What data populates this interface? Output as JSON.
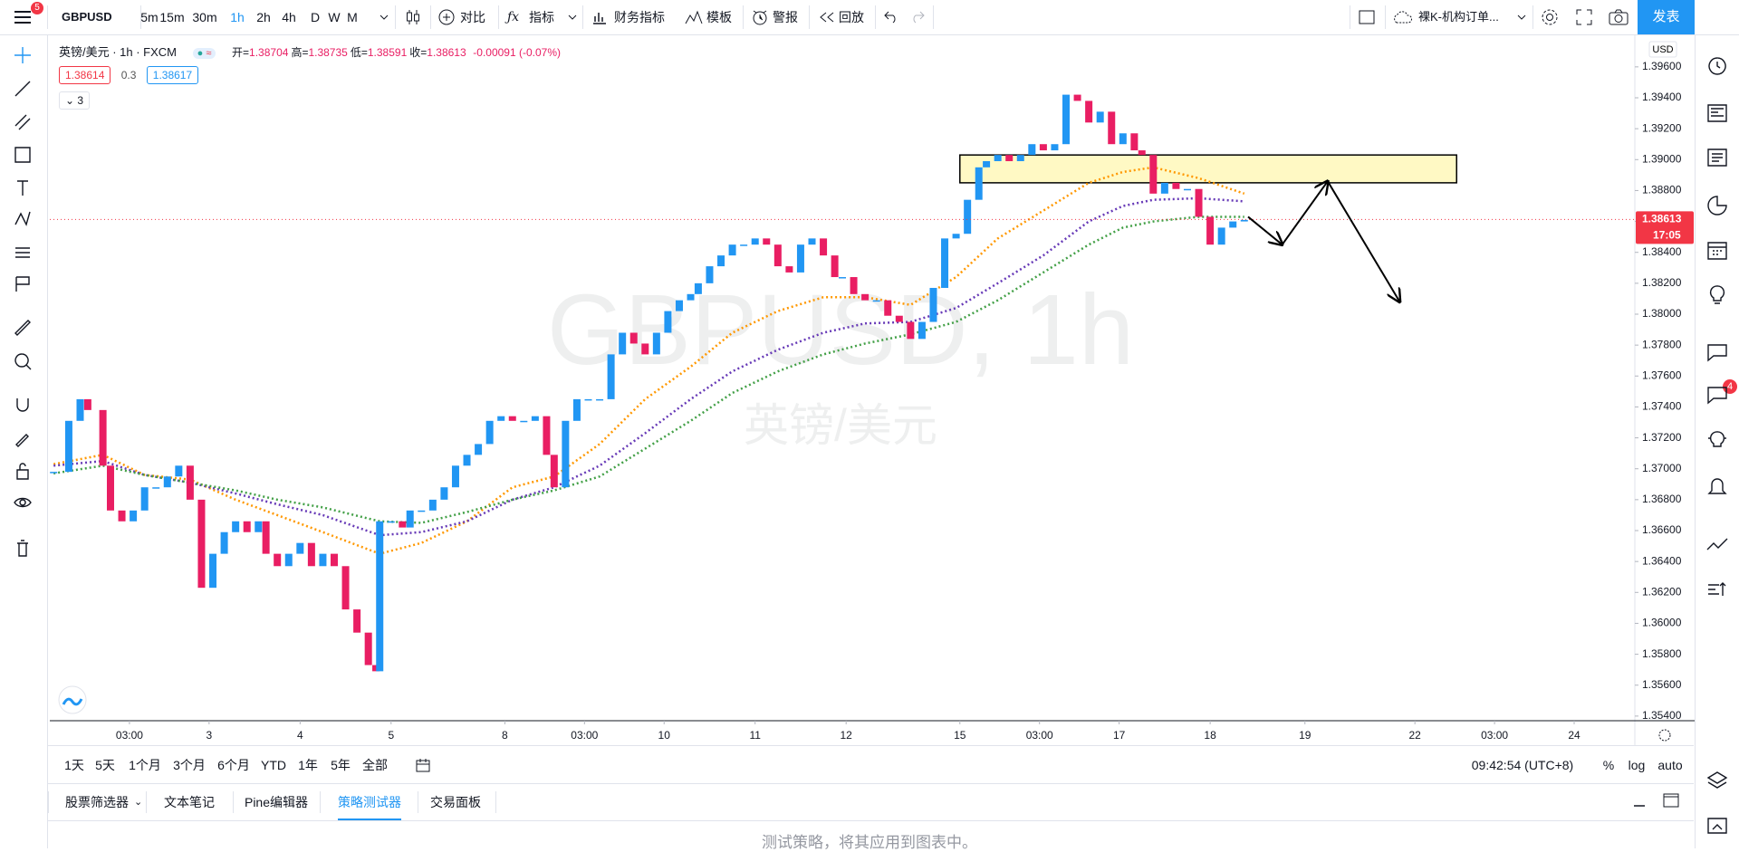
{
  "toolbar": {
    "badge": "5",
    "symbol": "GBPUSD",
    "intervals": [
      "5m",
      "15m",
      "30m",
      "1h",
      "2h",
      "4h",
      "D",
      "W",
      "M"
    ],
    "compare": "对比",
    "indicators": "指标",
    "financials": "财务指标",
    "templates": "模板",
    "alerts": "警报",
    "replay": "回放",
    "layout": "裸K-机构订单...",
    "publish": "发表"
  },
  "legend": {
    "title": "英镑/美元 · 1h · FXCM",
    "ohlc": [
      {
        "label": "开=",
        "value": "1.38704"
      },
      {
        "label": "高=",
        "value": "1.38735"
      },
      {
        "label": "低=",
        "value": "1.38591"
      },
      {
        "label": "收=",
        "value": "1.38613"
      }
    ],
    "change": "-0.00091 (-0.07%)",
    "bid": "1.38614",
    "spread": "0.3",
    "ask": "1.38617",
    "collapsed": "3"
  },
  "chart_data": {
    "type": "candlestick",
    "watermark": "GBPUSD, 1h",
    "watermark_sub": "英镑/美元",
    "currency": "USD",
    "x": [
      0,
      4,
      7,
      9,
      13,
      15,
      18,
      21,
      24,
      27,
      30,
      33,
      36,
      39,
      42,
      45,
      48,
      51,
      54,
      56,
      59,
      62,
      65,
      68,
      71,
      74,
      77,
      80,
      83,
      85,
      86,
      89,
      92,
      94,
      97,
      100,
      103,
      106,
      109,
      112,
      115,
      118,
      121,
      124,
      127,
      130,
      132,
      135,
      138,
      141,
      144,
      147,
      150,
      153,
      156,
      159,
      162,
      165,
      168,
      170,
      173,
      176,
      179,
      182,
      185,
      188,
      191,
      194,
      197,
      200,
      203,
      206,
      208,
      211,
      214,
      217,
      220,
      223,
      226,
      229,
      232,
      235,
      238,
      241,
      244,
      246,
      249,
      252,
      255,
      258,
      261,
      264,
      267,
      270,
      273,
      276,
      279,
      282,
      285,
      287,
      290,
      293,
      296,
      299,
      302,
      305,
      308,
      311,
      314
    ],
    "close": [
      1.3698,
      1.3731,
      1.3745,
      1.3738,
      1.3702,
      1.3673,
      1.3666,
      1.3673,
      1.3688,
      1.3688,
      1.3695,
      1.3702,
      1.368,
      1.3623,
      1.3645,
      1.3659,
      1.3666,
      1.3659,
      1.3666,
      1.3645,
      1.3637,
      1.3645,
      1.3652,
      1.3637,
      1.3645,
      1.3637,
      1.3609,
      1.3594,
      1.3573,
      1.3569,
      1.3666,
      1.3666,
      1.3662,
      1.3673,
      1.3673,
      1.368,
      1.3688,
      1.3702,
      1.3709,
      1.3716,
      1.3731,
      1.3734,
      1.3731,
      1.3731,
      1.3734,
      1.3709,
      1.3688,
      1.3731,
      1.3745,
      1.3745,
      1.3745,
      1.3774,
      1.3788,
      1.3781,
      1.3774,
      1.3788,
      1.3802,
      1.3809,
      1.3813,
      1.382,
      1.3831,
      1.3838,
      1.3845,
      1.3845,
      1.3849,
      1.3845,
      1.3831,
      1.3827,
      1.3845,
      1.3849,
      1.3838,
      1.3824,
      1.3824,
      1.3813,
      1.3809,
      1.3809,
      1.3799,
      1.3795,
      1.3784,
      1.3795,
      1.3817,
      1.3849,
      1.3852,
      1.3874,
      1.3895,
      1.3899,
      1.3903,
      1.3899,
      1.3903,
      1.391,
      1.3906,
      1.391,
      1.3942,
      1.3938,
      1.3924,
      1.3931,
      1.391,
      1.3917,
      1.3906,
      1.3903,
      1.3878,
      1.3885,
      1.3881,
      1.3881,
      1.3863,
      1.3845,
      1.3856,
      1.386,
      1.3861
    ],
    "up_color": "#2196f3",
    "down_color": "#e91e63",
    "moving_averages": [
      {
        "color": "#ff9800",
        "x": [
          0,
          13,
          24,
          36,
          48,
          59,
          71,
          86,
          97,
          109,
          121,
          132,
          144,
          156,
          168,
          179,
          191,
          203,
          214,
          226,
          238,
          249,
          261,
          273,
          282,
          290,
          302,
          314
        ],
        "values": [
          1.3703,
          1.3709,
          1.3696,
          1.3693,
          1.368,
          1.367,
          1.3659,
          1.3645,
          1.3652,
          1.3666,
          1.3688,
          1.3695,
          1.3716,
          1.3745,
          1.3766,
          1.3788,
          1.3802,
          1.3811,
          1.3811,
          1.3806,
          1.3824,
          1.3849,
          1.3867,
          1.3885,
          1.3892,
          1.3895,
          1.3888,
          1.3878
        ]
      },
      {
        "color": "#673ab7",
        "x": [
          0,
          13,
          24,
          36,
          48,
          59,
          71,
          86,
          97,
          109,
          121,
          132,
          144,
          156,
          168,
          179,
          191,
          203,
          214,
          226,
          238,
          249,
          261,
          273,
          282,
          290,
          302,
          314
        ],
        "values": [
          1.3702,
          1.3705,
          1.3696,
          1.3691,
          1.3684,
          1.3677,
          1.367,
          1.3657,
          1.3659,
          1.3666,
          1.368,
          1.3688,
          1.3702,
          1.3723,
          1.3745,
          1.3763,
          1.3777,
          1.3788,
          1.3794,
          1.3795,
          1.3804,
          1.382,
          1.3838,
          1.386,
          1.387,
          1.3874,
          1.3875,
          1.3873
        ]
      },
      {
        "color": "#43a047",
        "x": [
          0,
          13,
          24,
          36,
          48,
          59,
          71,
          86,
          97,
          109,
          121,
          132,
          144,
          156,
          168,
          179,
          191,
          203,
          214,
          226,
          238,
          249,
          261,
          273,
          282,
          290,
          302,
          314
        ],
        "values": [
          1.3697,
          1.3702,
          1.3696,
          1.3691,
          1.3686,
          1.368,
          1.3675,
          1.3666,
          1.3665,
          1.3672,
          1.368,
          1.3686,
          1.3695,
          1.3713,
          1.3731,
          1.3749,
          1.3763,
          1.3774,
          1.3781,
          1.3787,
          1.3795,
          1.3809,
          1.3827,
          1.3845,
          1.3856,
          1.386,
          1.3863,
          1.3863
        ]
      }
    ],
    "zone": {
      "x": [
        239,
        370
      ],
      "y": [
        1.3885,
        1.3903
      ],
      "color": "#fff9c4"
    },
    "arrow": {
      "x": [
        315,
        324,
        336,
        355
      ],
      "y": [
        1.3863,
        1.3845,
        1.3886,
        1.3808
      ]
    },
    "last_price": 1.38613,
    "countdown": "17:05",
    "price_line_color": "#f23645",
    "xlim": [
      -1,
      417
    ],
    "xticks": [
      {
        "value": 20,
        "label": "03:00"
      },
      {
        "value": 41,
        "label": "3"
      },
      {
        "value": 65,
        "label": "4"
      },
      {
        "value": 89,
        "label": "5"
      },
      {
        "value": 119,
        "label": "8"
      },
      {
        "value": 140,
        "label": "03:00"
      },
      {
        "value": 161,
        "label": "10"
      },
      {
        "value": 185,
        "label": "11"
      },
      {
        "value": 209,
        "label": "12"
      },
      {
        "value": 239,
        "label": "15"
      },
      {
        "value": 260,
        "label": "03:00"
      },
      {
        "value": 281,
        "label": "17"
      },
      {
        "value": 305,
        "label": "18"
      },
      {
        "value": 330,
        "label": "19"
      },
      {
        "value": 359,
        "label": "22"
      },
      {
        "value": 380,
        "label": "03:00"
      },
      {
        "value": 401,
        "label": "24"
      }
    ],
    "ylim": [
      1.3537,
      1.3981
    ],
    "yticks": [
      {
        "value": 1.354,
        "label": "1.35400"
      },
      {
        "value": 1.356,
        "label": "1.35600"
      },
      {
        "value": 1.358,
        "label": "1.35800"
      },
      {
        "value": 1.36,
        "label": "1.36000"
      },
      {
        "value": 1.362,
        "label": "1.36200"
      },
      {
        "value": 1.364,
        "label": "1.36400"
      },
      {
        "value": 1.366,
        "label": "1.36600"
      },
      {
        "value": 1.368,
        "label": "1.36800"
      },
      {
        "value": 1.37,
        "label": "1.37000"
      },
      {
        "value": 1.372,
        "label": "1.37200"
      },
      {
        "value": 1.374,
        "label": "1.37400"
      },
      {
        "value": 1.376,
        "label": "1.37600"
      },
      {
        "value": 1.378,
        "label": "1.37800"
      },
      {
        "value": 1.38,
        "label": "1.38000"
      },
      {
        "value": 1.382,
        "label": "1.38200"
      },
      {
        "value": 1.384,
        "label": "1.38400"
      },
      {
        "value": 1.386,
        "label": "1.38600"
      },
      {
        "value": 1.388,
        "label": "1.38800"
      },
      {
        "value": 1.39,
        "label": "1.39000"
      },
      {
        "value": 1.392,
        "label": "1.39200"
      },
      {
        "value": 1.394,
        "label": "1.39400"
      },
      {
        "value": 1.396,
        "label": "1.39600"
      }
    ]
  },
  "range_bar": {
    "ranges": [
      "1天",
      "5天",
      "1个月",
      "3个月",
      "6个月",
      "YTD",
      "1年",
      "5年",
      "全部"
    ],
    "clock": "09:42:54 (UTC+8)",
    "percent": "%",
    "log": "log",
    "auto": "auto"
  },
  "bottom_panel": {
    "tabs": [
      "股票筛选器",
      "文本笔记",
      "Pine编辑器",
      "策略测试器",
      "交易面板"
    ],
    "message": "测试策略，将其应用到图表中。",
    "alerts_badge": "4"
  }
}
